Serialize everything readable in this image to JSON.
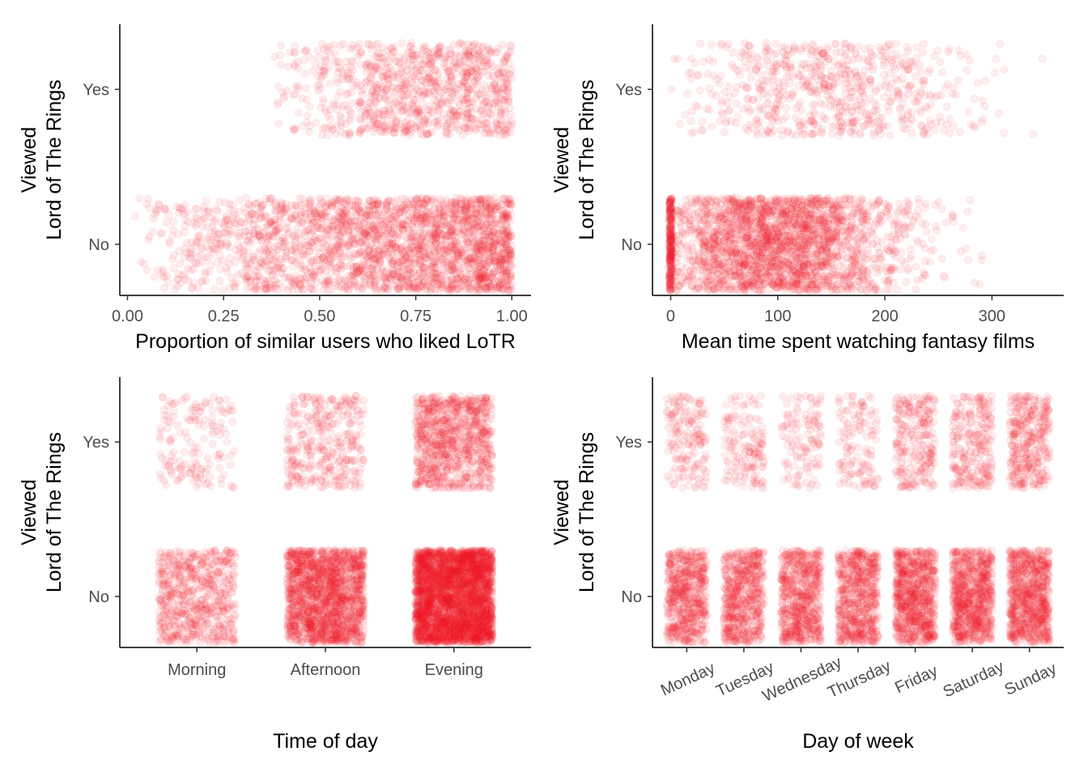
{
  "figure": {
    "point_color": "#ee1c25",
    "point_opacity": 0.08
  },
  "chart_data": [
    {
      "type": "scatter",
      "id": "similar-users",
      "title": "",
      "xlabel": "Proportion of similar users who liked LoTR",
      "ylabel": [
        "Viewed",
        "Lord of The Rings"
      ],
      "x_axis": "continuous",
      "xlim": [
        -0.02,
        1.05
      ],
      "x_ticks": [
        0.0,
        0.25,
        0.5,
        0.75,
        1.0
      ],
      "x_tick_labels": [
        "0.00",
        "0.25",
        "0.50",
        "0.75",
        "1.00"
      ],
      "y_categories": [
        "No",
        "Yes"
      ],
      "jitter_height": 0.3,
      "grid": false,
      "series": [
        {
          "y": "No",
          "distribution": "increasing",
          "range": [
            0.0,
            1.0
          ],
          "n_points": 2600
        },
        {
          "y": "Yes",
          "distribution": "concentrated-high",
          "range": [
            0.38,
            1.0
          ],
          "n_points": 1000
        }
      ]
    },
    {
      "type": "scatter",
      "id": "fantasy-time",
      "title": "",
      "xlabel": "Mean time spent watching fantasy films",
      "ylabel": [
        "Viewed",
        "Lord of The Rings"
      ],
      "x_axis": "continuous",
      "xlim": [
        -17,
        367
      ],
      "x_ticks": [
        0,
        100,
        200,
        300
      ],
      "x_tick_labels": [
        "0",
        "100",
        "200",
        "300"
      ],
      "y_categories": [
        "No",
        "Yes"
      ],
      "jitter_height": 0.3,
      "grid": false,
      "series": [
        {
          "y": "No",
          "distribution": "normal",
          "mean": 100,
          "sd": 60,
          "range": [
            0,
            310
          ],
          "zero_cluster": 250,
          "n_points": 2400
        },
        {
          "y": "Yes",
          "distribution": "normal",
          "mean": 145,
          "sd": 70,
          "range": [
            0,
            350
          ],
          "n_points": 700
        }
      ]
    },
    {
      "type": "scatter",
      "id": "time-of-day",
      "title": "",
      "xlabel": "Time of day",
      "ylabel": [
        "Viewed",
        "Lord of The Rings"
      ],
      "x_axis": "categorical",
      "categories": [
        "Morning",
        "Afternoon",
        "Evening"
      ],
      "y_categories": [
        "No",
        "Yes"
      ],
      "jitter_width": 0.3,
      "jitter_height": 0.3,
      "grid": false,
      "series": [
        {
          "y": "No",
          "counts": [
            650,
            1700,
            3400
          ]
        },
        {
          "y": "Yes",
          "counts": [
            160,
            350,
            900
          ]
        }
      ]
    },
    {
      "type": "scatter",
      "id": "day-of-week",
      "title": "",
      "xlabel": "Day of week",
      "ylabel": [
        "Viewed",
        "Lord of The Rings"
      ],
      "x_axis": "categorical",
      "categories": [
        "Monday",
        "Tuesday",
        "Wednesday",
        "Thursday",
        "Friday",
        "Saturday",
        "Sunday"
      ],
      "x_tick_angle": -25,
      "y_categories": [
        "No",
        "Yes"
      ],
      "jitter_width": 0.35,
      "jitter_height": 0.3,
      "grid": false,
      "series": [
        {
          "y": "No",
          "counts": [
            600,
            600,
            650,
            650,
            800,
            800,
            800
          ]
        },
        {
          "y": "Yes",
          "counts": [
            170,
            150,
            120,
            130,
            250,
            260,
            350
          ]
        }
      ]
    }
  ]
}
